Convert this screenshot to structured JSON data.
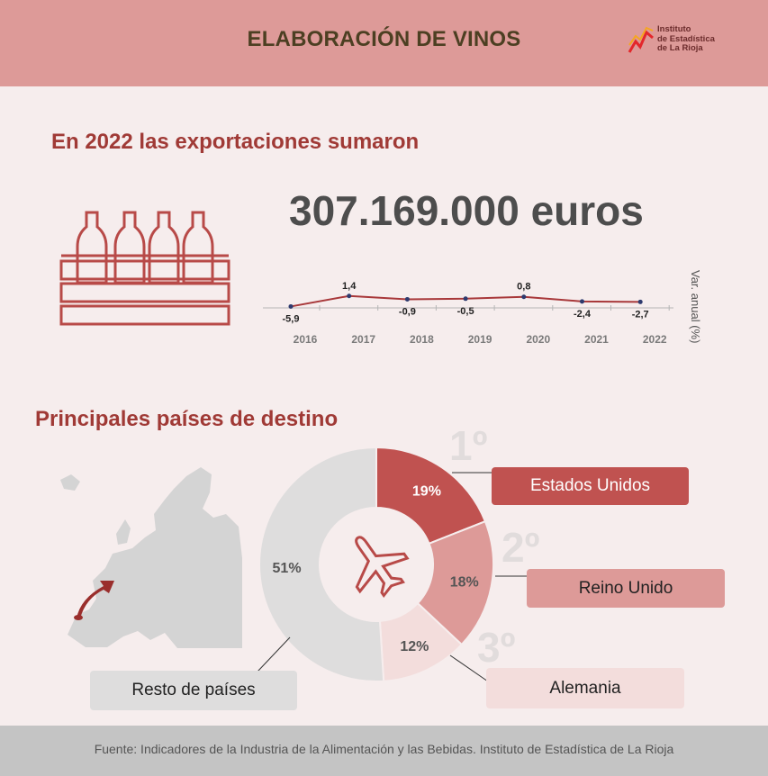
{
  "header": {
    "title": "ELABORACIÓN DE VINOS",
    "logo_lines": [
      "Instituto",
      "de Estadística",
      "de La Rioja"
    ]
  },
  "exports": {
    "heading": "En 2022 las exportaciones sumaron",
    "amount": "307.169.000 euros"
  },
  "chart_data": {
    "type": "line",
    "x": [
      "2016",
      "2017",
      "2018",
      "2019",
      "2020",
      "2021",
      "2022"
    ],
    "series": [
      {
        "values": [
          -5.9,
          1.4,
          -0.9,
          -0.5,
          0.8,
          -2.4,
          -2.7
        ]
      }
    ],
    "value_labels": [
      "-5,9",
      "1,4",
      "-0,9",
      "-0,5",
      "0,8",
      "-2,4",
      "-2,7"
    ],
    "ylabel": "Var. anual (%)"
  },
  "destinations": {
    "heading": "Principales países de destino",
    "countries": [
      {
        "rank": "1º",
        "name": "Estados Unidos",
        "share_percent": 19,
        "label": "19%",
        "color": "#c05250"
      },
      {
        "rank": "2º",
        "name": "Reino Unido",
        "share_percent": 18,
        "label": "18%",
        "color": "#dd9a98"
      },
      {
        "rank": "3º",
        "name": "Alemania",
        "share_percent": 12,
        "label": "12%",
        "color": "#f3dddc"
      }
    ],
    "rest": {
      "name": "Resto de países",
      "share_percent": 51,
      "label": "51%",
      "color": "#dedddd"
    }
  },
  "footer": {
    "source": "Fuente: Indicadores de la Industria de la Alimentación y las Bebidas. Instituto de Estadística de La Rioja"
  },
  "colors": {
    "header_bg": "#dd9a98",
    "accent": "#a03a36",
    "line": "#a8383a",
    "background": "#f6eded"
  }
}
